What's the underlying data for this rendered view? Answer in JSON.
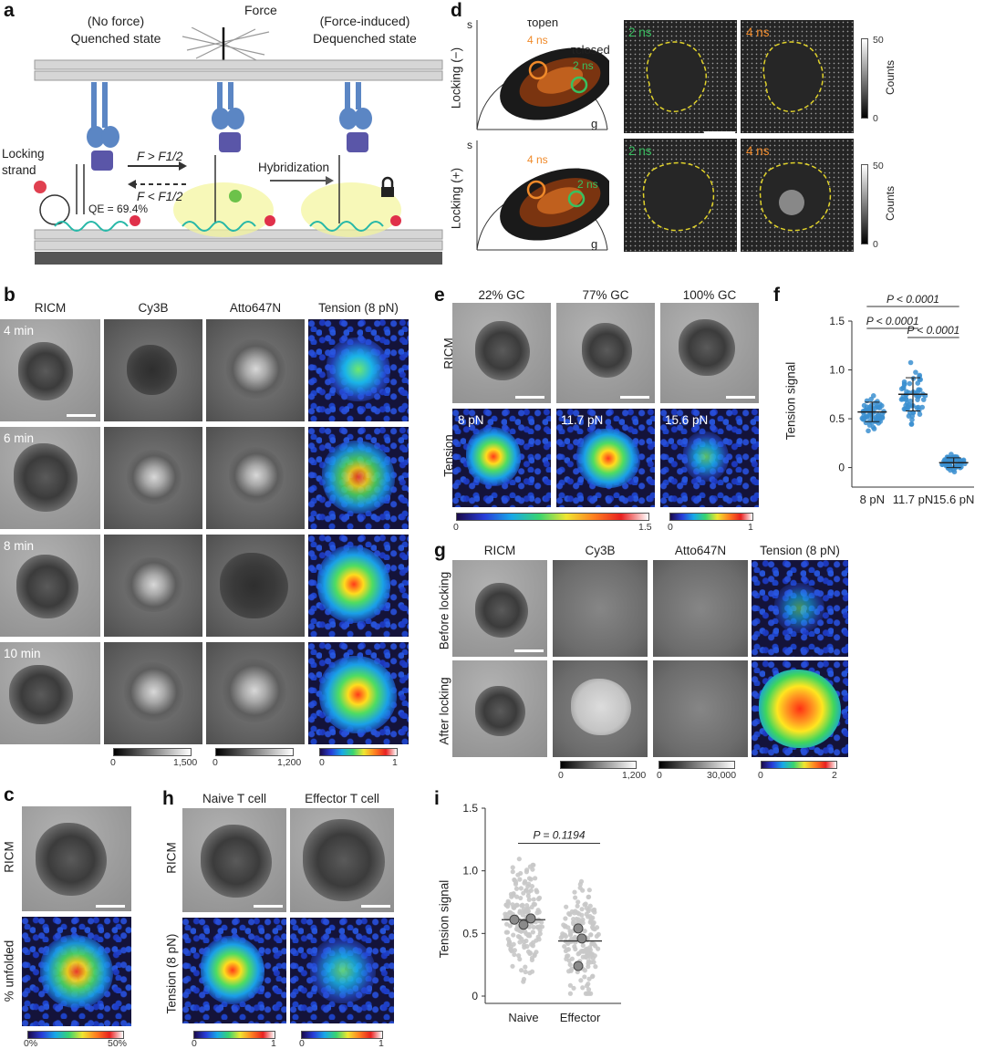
{
  "panel_a": {
    "letter": "a",
    "quenched": "(No force)\nQuenched state",
    "force": "Force",
    "dequenched": "(Force-induced)\nDequenched state",
    "locking_strand": "Locking\nstrand",
    "f_gt": "F > F1/2",
    "f_lt": "F < F1/2",
    "hybridization": "Hybridization",
    "qe": "QE = 69.4%"
  },
  "panel_b": {
    "letter": "b",
    "columns": [
      "RICM",
      "Cy3B",
      "Atto647N",
      "Tension (8 pN)"
    ],
    "rows": [
      "4 min",
      "6 min",
      "8 min",
      "10 min"
    ],
    "cbar1": [
      "0",
      "1,500"
    ],
    "cbar2": [
      "0",
      "1,200"
    ],
    "cbar3": [
      "0",
      "1"
    ]
  },
  "panel_c": {
    "letter": "c",
    "row1": "RICM",
    "row2": "% unfolded",
    "cbar": [
      "0%",
      "50%"
    ]
  },
  "panel_d": {
    "letter": "d",
    "row1": "Locking (−)",
    "row2": "Locking (+)",
    "axis_s": "s",
    "axis_g": "g",
    "tau_open": "τopen",
    "tau_closed": "τclosed",
    "ns4": "4 ns",
    "ns2": "2 ns",
    "counts": "Counts",
    "cbar_top": "50",
    "cbar_bottom": "0"
  },
  "panel_e": {
    "letter": "e",
    "columns": [
      "22% GC",
      "77% GC",
      "100% GC"
    ],
    "row1": "RICM",
    "row2": "Tension",
    "tension_labels": [
      "8 pN",
      "11.7 pN",
      "15.6 pN"
    ],
    "cbar1": [
      "0",
      "1.5"
    ],
    "cbar2": [
      "0",
      "1"
    ]
  },
  "panel_f": {
    "letter": "f",
    "ylabel": "Tension signal",
    "p_values": [
      "P < 0.0001",
      "P < 0.0001",
      "P < 0.0001"
    ]
  },
  "panel_g": {
    "letter": "g",
    "columns": [
      "RICM",
      "Cy3B",
      "Atto647N",
      "Tension (8 pN)"
    ],
    "rows": [
      "Before locking",
      "After locking"
    ],
    "cbar1": [
      "0",
      "1,200"
    ],
    "cbar2": [
      "0",
      "30,000"
    ],
    "cbar3": [
      "0",
      "2"
    ]
  },
  "panel_h": {
    "letter": "h",
    "columns": [
      "Naive T cell",
      "Effector T cell"
    ],
    "row1": "RICM",
    "row2": "Tension (8 pN)",
    "cbar": [
      "0",
      "1"
    ]
  },
  "panel_i": {
    "letter": "i",
    "ylabel": "Tension signal",
    "p_value": "P = 0.1194"
  },
  "chart_data": [
    {
      "panel": "f",
      "type": "scatter",
      "categories": [
        "8 pN",
        "11.7 pN",
        "15.6 pN"
      ],
      "ylabel": "Tension signal",
      "ylim": [
        -0.2,
        1.5
      ],
      "yticks": [
        "0",
        "0.5",
        "1.0",
        "1.5"
      ],
      "means": [
        0.57,
        0.75,
        0.05
      ],
      "sd": [
        0.1,
        0.17,
        0.05
      ],
      "point_color": "#3b8fd0"
    },
    {
      "panel": "i",
      "type": "scatter",
      "categories": [
        "Naive",
        "Effector"
      ],
      "ylabel": "Tension signal",
      "ylim": [
        0,
        1.5
      ],
      "yticks": [
        "0",
        "0.5",
        "1.0",
        "1.5"
      ],
      "means": [
        0.61,
        0.44
      ],
      "replicate_means": [
        [
          0.61,
          0.62,
          0.57
        ],
        [
          0.54,
          0.46,
          0.24
        ]
      ],
      "point_color": "#c8c8c8"
    }
  ]
}
